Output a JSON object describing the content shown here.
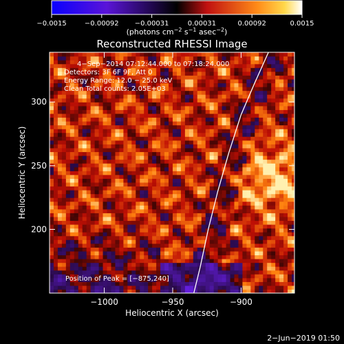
{
  "colorbar": {
    "ticks": [
      "−0.0015",
      "−0.00092",
      "−0.00031",
      "0.00031",
      "0.00092",
      "0.0015"
    ],
    "range": [
      -0.0015,
      0.0015
    ],
    "unit_main": "(photons cm",
    "unit_exp1": "−2",
    "unit_mid": " s",
    "unit_exp2": "−1",
    "unit_end": " asec",
    "unit_exp3": "−2",
    "unit_close": ")"
  },
  "annotations": {
    "time": "4−Sep−2014 07:12:44.000 to 07:18:24.000",
    "detectors": "Detectors: 3F 6F 9F, Att 0",
    "energy": "Energy Range: 12.0 − 25.0 keV",
    "clean": "Clean    Total counts: 2.05E+03",
    "peak": "Position of Peak = [−875,240]"
  },
  "footer": {
    "date": "2−Jun−2019 01:50"
  },
  "chart_data": {
    "type": "heatmap",
    "title": "Reconstructed RHESSI Image",
    "xlabel": "Heliocentric X (arcsec)",
    "ylabel": "Heliocentric Y (arcsec)",
    "xlim": [
      -1040,
      -861
    ],
    "ylim": [
      150,
      339
    ],
    "xticks": [
      -1000,
      -950,
      -900
    ],
    "yticks": [
      200,
      250,
      300
    ],
    "xtick_labels": [
      "−1000",
      "−950",
      "−900"
    ],
    "ytick_labels": [
      "200",
      "250",
      "300"
    ],
    "grid": false,
    "peak_position": [
      -875,
      240
    ],
    "limb_curve": [
      [
        -935,
        148
      ],
      [
        -930,
        170
      ],
      [
        -924,
        200
      ],
      [
        -917,
        230
      ],
      [
        -909,
        260
      ],
      [
        -900,
        290
      ],
      [
        -890,
        315
      ],
      [
        -880,
        339
      ]
    ],
    "colormap": "hot with negative blue-purple",
    "colors": {
      "negative_deep": "#2a1cff",
      "negative_mid": "#7a2ad0",
      "zero": "#000000",
      "low": "#b01010",
      "mid": "#ff6a10",
      "high": "#ffe060",
      "max": "#ffffff",
      "limb": "#ffffff"
    }
  }
}
